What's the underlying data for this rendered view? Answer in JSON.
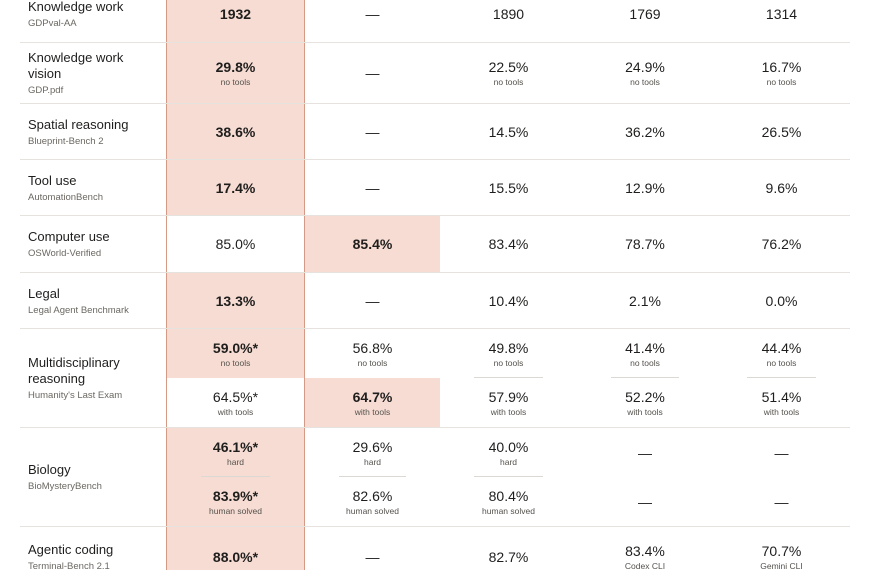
{
  "table": {
    "rows": [
      {
        "label": "Knowledge work",
        "sublabel": "GDPval-AA",
        "cells": [
          [
            {
              "value": "1932",
              "highlight": true
            }
          ],
          [
            {
              "value": "—"
            }
          ],
          [
            {
              "value": "1890"
            }
          ],
          [
            {
              "value": "1769"
            }
          ],
          [
            {
              "value": "1314"
            }
          ]
        ]
      },
      {
        "label": "Knowledge work vision",
        "sublabel": "GDP.pdf",
        "cells": [
          [
            {
              "value": "29.8%",
              "note": "no tools",
              "highlight": true
            }
          ],
          [
            {
              "value": "—"
            }
          ],
          [
            {
              "value": "22.5%",
              "note": "no tools"
            }
          ],
          [
            {
              "value": "24.9%",
              "note": "no tools"
            }
          ],
          [
            {
              "value": "16.7%",
              "note": "no tools"
            }
          ]
        ]
      },
      {
        "label": "Spatial reasoning",
        "sublabel": "Blueprint-Bench 2",
        "cells": [
          [
            {
              "value": "38.6%",
              "highlight": true
            }
          ],
          [
            {
              "value": "—"
            }
          ],
          [
            {
              "value": "14.5%"
            }
          ],
          [
            {
              "value": "36.2%"
            }
          ],
          [
            {
              "value": "26.5%"
            }
          ]
        ]
      },
      {
        "label": "Tool use",
        "sublabel": "AutomationBench",
        "cells": [
          [
            {
              "value": "17.4%",
              "highlight": true
            }
          ],
          [
            {
              "value": "—"
            }
          ],
          [
            {
              "value": "15.5%"
            }
          ],
          [
            {
              "value": "12.9%"
            }
          ],
          [
            {
              "value": "9.6%"
            }
          ]
        ]
      },
      {
        "label": "Computer use",
        "sublabel": "OSWorld-Verified",
        "cells": [
          [
            {
              "value": "85.0%"
            }
          ],
          [
            {
              "value": "85.4%",
              "highlight": true
            }
          ],
          [
            {
              "value": "83.4%"
            }
          ],
          [
            {
              "value": "78.7%"
            }
          ],
          [
            {
              "value": "76.2%"
            }
          ]
        ]
      },
      {
        "label": "Legal",
        "sublabel": "Legal Agent Benchmark",
        "cells": [
          [
            {
              "value": "13.3%",
              "highlight": true
            }
          ],
          [
            {
              "value": "—"
            }
          ],
          [
            {
              "value": "10.4%"
            }
          ],
          [
            {
              "value": "2.1%"
            }
          ],
          [
            {
              "value": "0.0%"
            }
          ]
        ]
      },
      {
        "label": "Multidisciplinary reasoning",
        "sublabel": "Humanity's Last Exam",
        "cells": [
          [
            {
              "value": "59.0%*",
              "note": "no tools",
              "highlight": true
            },
            {
              "value": "64.5%*",
              "note": "with tools"
            }
          ],
          [
            {
              "value": "56.8%",
              "note": "no tools"
            },
            {
              "value": "64.7%",
              "note": "with tools",
              "highlight": true
            }
          ],
          [
            {
              "value": "49.8%",
              "note": "no tools"
            },
            {
              "value": "57.9%",
              "note": "with tools"
            }
          ],
          [
            {
              "value": "41.4%",
              "note": "no tools"
            },
            {
              "value": "52.2%",
              "note": "with tools"
            }
          ],
          [
            {
              "value": "44.4%",
              "note": "no tools"
            },
            {
              "value": "51.4%",
              "note": "with tools"
            }
          ]
        ]
      },
      {
        "label": "Biology",
        "sublabel": "BioMysteryBench",
        "cells": [
          [
            {
              "value": "46.1%*",
              "note": "hard",
              "highlight": true
            },
            {
              "value": "83.9%*",
              "note": "human solved",
              "highlight": true
            }
          ],
          [
            {
              "value": "29.6%",
              "note": "hard"
            },
            {
              "value": "82.6%",
              "note": "human solved"
            }
          ],
          [
            {
              "value": "40.0%",
              "note": "hard"
            },
            {
              "value": "80.4%",
              "note": "human solved"
            }
          ],
          [
            {
              "value": "—"
            },
            {
              "value": "—"
            }
          ],
          [
            {
              "value": "—"
            },
            {
              "value": "—"
            }
          ]
        ]
      },
      {
        "label": "Agentic coding",
        "sublabel": "Terminal-Bench 2.1",
        "cells": [
          [
            {
              "value": "88.0%*",
              "highlight": true
            }
          ],
          [
            {
              "value": "—"
            }
          ],
          [
            {
              "value": "82.7%"
            }
          ],
          [
            {
              "value": "83.4%",
              "note": "Codex CLI"
            }
          ],
          [
            {
              "value": "70.7%",
              "note": "Gemini CLI"
            }
          ]
        ]
      }
    ]
  }
}
